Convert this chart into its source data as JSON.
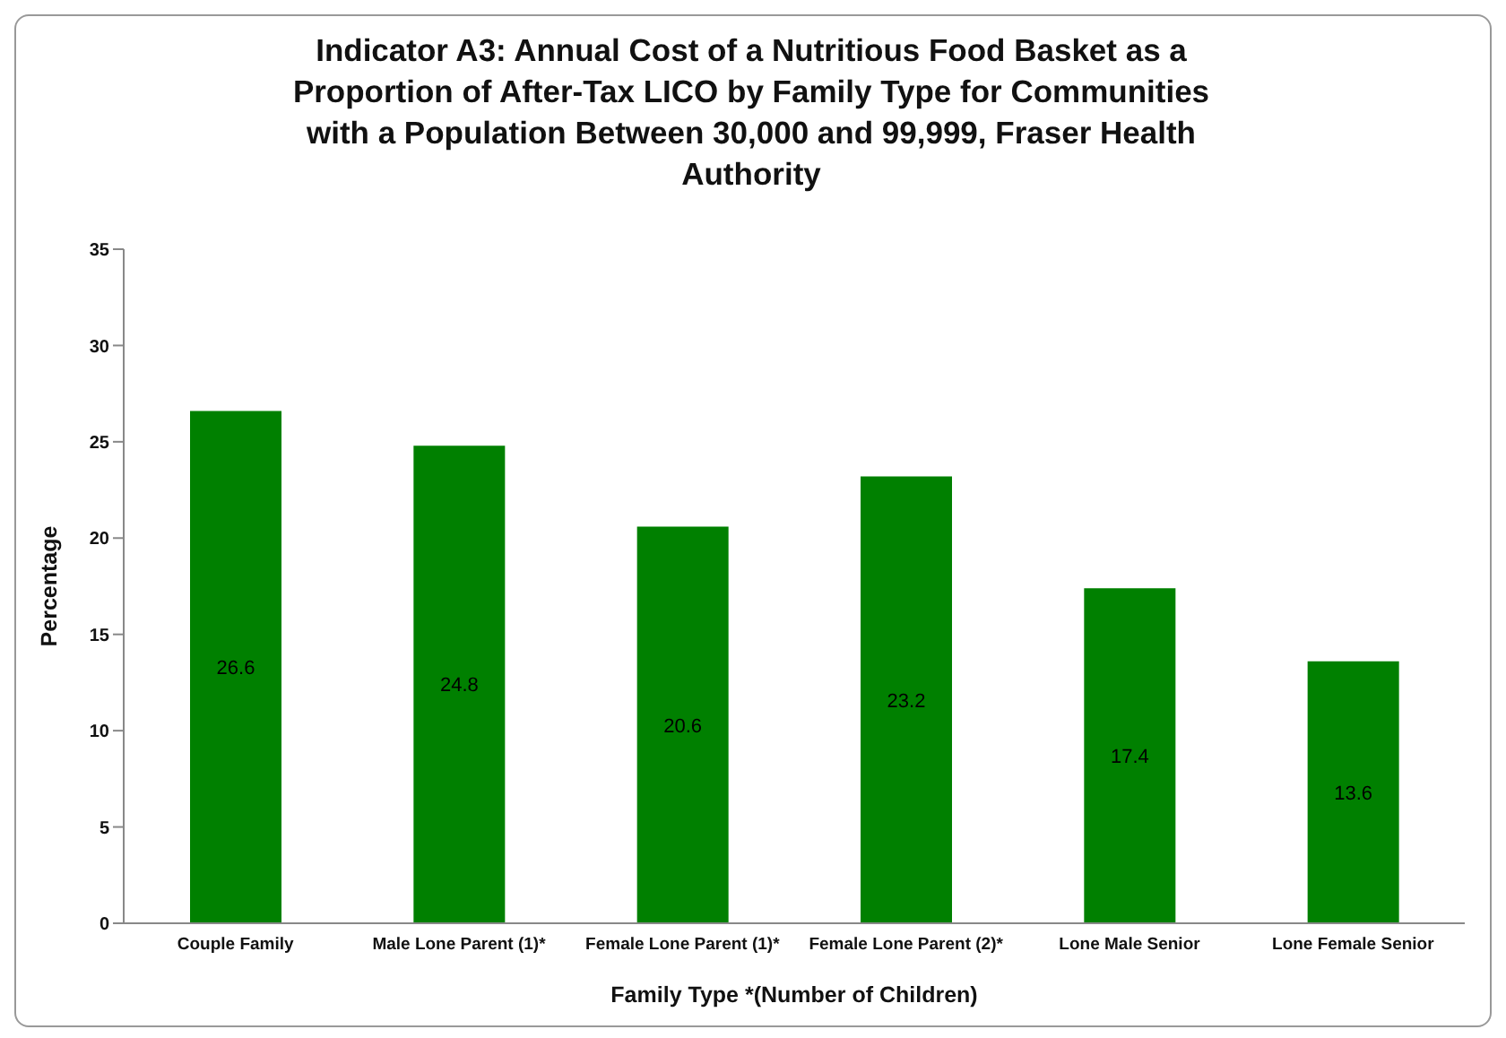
{
  "chart_data": {
    "type": "bar",
    "title": "Indicator A3: Annual Cost of a Nutritious Food Basket as a Proportion of After-Tax LICO by Family Type for Communities with a Population Between 30,000 and 99,999, Fraser Health Authority",
    "categories": [
      "Couple Family",
      "Male Lone Parent (1)*",
      "Female Lone Parent (1)*",
      "Female Lone Parent (2)*",
      "Lone Male Senior",
      "Lone Female Senior"
    ],
    "values": [
      26.6,
      24.8,
      20.6,
      23.2,
      17.4,
      13.6
    ],
    "color": "#008000",
    "xlabel": "Family Type    *(Number of Children)",
    "ylabel": "Percentage",
    "ylim": [
      0,
      35
    ],
    "yticks": [
      0,
      5,
      10,
      15,
      20,
      25,
      30,
      35
    ],
    "data_labels": true,
    "grid": false
  }
}
